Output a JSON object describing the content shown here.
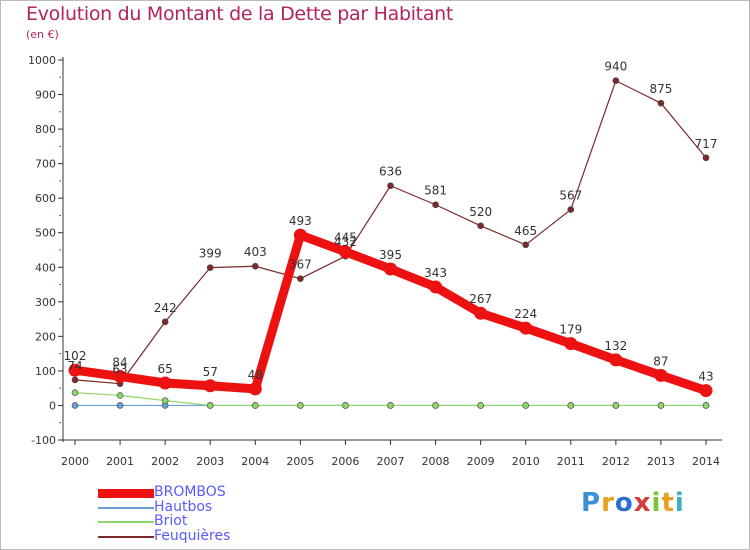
{
  "title": "Evolution du Montant de la Dette par Habitant",
  "subtitle": "(en €)",
  "logo": "Proxiti",
  "chart_data": {
    "type": "line",
    "title": "Evolution du Montant de la Dette par Habitant",
    "subtitle": "(en €)",
    "xlabel": "",
    "ylabel": "",
    "categories": [
      "2000",
      "2001",
      "2002",
      "2003",
      "2004",
      "2005",
      "2006",
      "2007",
      "2008",
      "2009",
      "2010",
      "2011",
      "2012",
      "2013",
      "2014"
    ],
    "ylim": [
      -100,
      1000
    ],
    "yticks": [
      -100,
      0,
      100,
      200,
      300,
      400,
      500,
      600,
      700,
      800,
      900,
      1000
    ],
    "grid": false,
    "legend_position": "bottom-left",
    "series": [
      {
        "name": "BROMBOS",
        "color": "#ee1111",
        "values": [
          102,
          84,
          65,
          57,
          48,
          493,
          445,
          395,
          343,
          267,
          224,
          179,
          132,
          87,
          43
        ]
      },
      {
        "name": "Hautbos",
        "color": "#6a9fd6",
        "values": [
          0,
          0,
          0,
          0,
          0,
          0,
          0,
          0,
          0,
          0,
          0,
          0,
          0,
          0,
          0
        ]
      },
      {
        "name": "Briot",
        "color": "#8fd66a",
        "values": [
          37,
          29,
          14,
          0,
          0,
          0,
          0,
          0,
          0,
          0,
          0,
          0,
          0,
          0,
          0
        ]
      },
      {
        "name": "Feuquières",
        "color": "#7a2a2a",
        "values": [
          74,
          63,
          242,
          399,
          403,
          367,
          432,
          636,
          581,
          520,
          465,
          567,
          940,
          875,
          717
        ]
      }
    ]
  },
  "colors": {
    "title": "#b3245a",
    "axis": "#333333",
    "tick_label": "#333333",
    "data_label": "#333333",
    "legend_text": "#5a5aff"
  }
}
